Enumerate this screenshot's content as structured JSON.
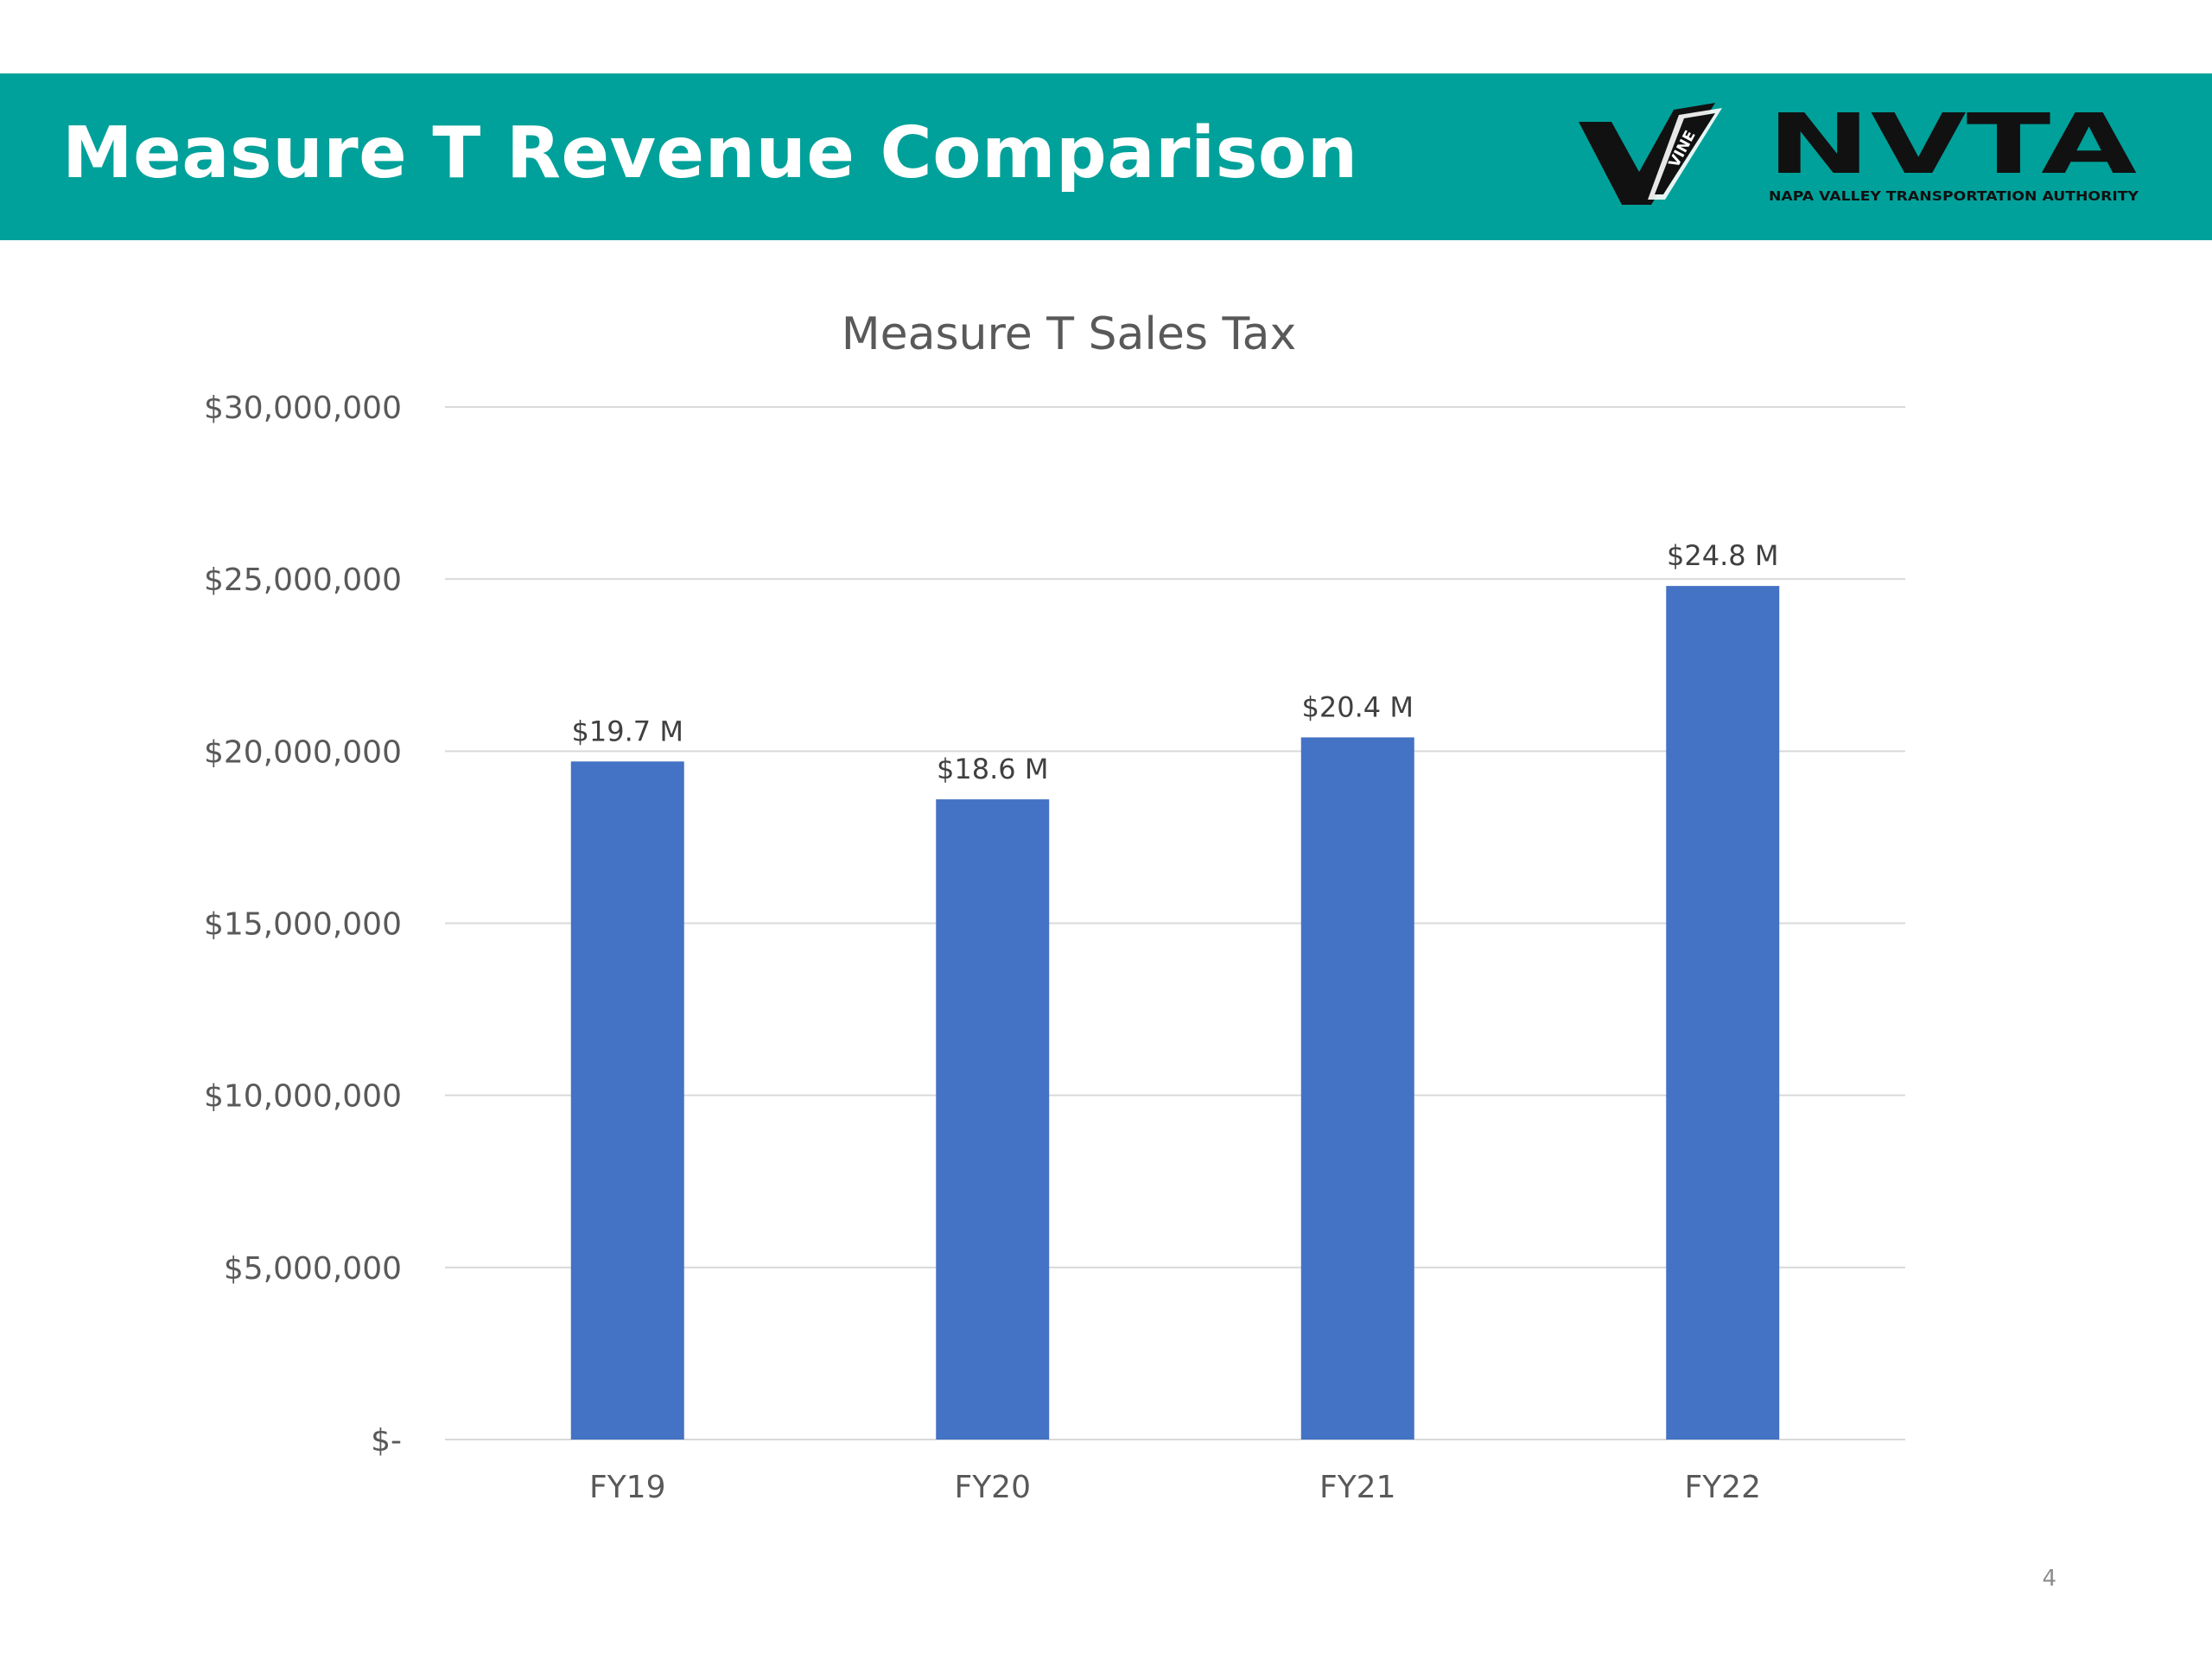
{
  "slide": {
    "title": "Measure T Revenue Comparison",
    "page_number": "4",
    "header_color": "#00A19A",
    "bar_color": "#4472C4"
  },
  "logos": {
    "vine": {
      "text": "VINE",
      "icon": "vine-logo-icon"
    },
    "nvta": {
      "text": "NVTA",
      "subtitle": "NAPA VALLEY TRANSPORTATION AUTHORITY",
      "icon": "nvta-logo-icon"
    }
  },
  "chart_data": {
    "type": "bar",
    "title": "Measure T Sales Tax",
    "categories": [
      "FY19",
      "FY20",
      "FY21",
      "FY22"
    ],
    "values": [
      19700000,
      18600000,
      20400000,
      24800000
    ],
    "data_labels": [
      "$19.7 M",
      "$18.6 M",
      "$20.4 M",
      "$24.8 M"
    ],
    "xlabel": "",
    "ylabel": "",
    "ylim": [
      0,
      30000000
    ],
    "y_ticks": [
      {
        "value": 0,
        "label": "$-"
      },
      {
        "value": 5000000,
        "label": "$5,000,000"
      },
      {
        "value": 10000000,
        "label": "$10,000,000"
      },
      {
        "value": 15000000,
        "label": "$15,000,000"
      },
      {
        "value": 20000000,
        "label": "$20,000,000"
      },
      {
        "value": 25000000,
        "label": "$25,000,000"
      },
      {
        "value": 30000000,
        "label": "$30,000,000"
      }
    ],
    "grid": true,
    "legend": "none"
  }
}
